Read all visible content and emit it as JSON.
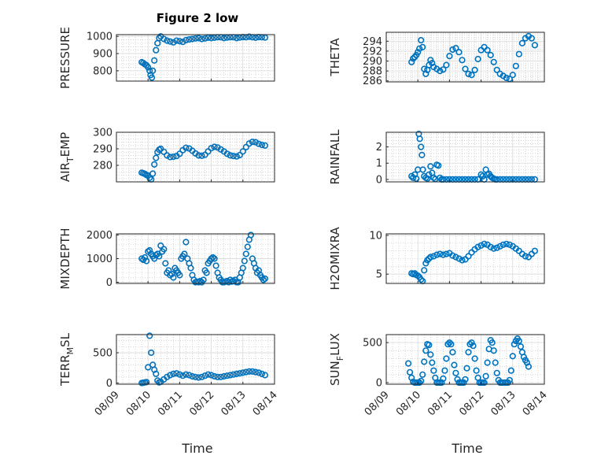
{
  "figure_title": "Figure 2 low",
  "x_axis_label": "Time",
  "x_tick_labels": [
    "08/09",
    "08/10",
    "08/11",
    "08/12",
    "08/13",
    "08/14"
  ],
  "chart_data": [
    {
      "type": "scatter",
      "ylabel": "PRESSURE",
      "ylim": [
        740,
        1010
      ],
      "yticks": [
        800,
        900,
        1000
      ],
      "xlim": [
        "08/09",
        "08/14"
      ],
      "grid": "on",
      "x": [
        9.8,
        9.85,
        9.9,
        9.95,
        10.0,
        10.05,
        10.08,
        10.12,
        10.15,
        10.2,
        10.25,
        10.3,
        10.35,
        10.4,
        10.5,
        10.6,
        10.7,
        10.8,
        10.9,
        11.0,
        11.1,
        11.2,
        11.3,
        11.4,
        11.5,
        11.6,
        11.7,
        11.8,
        11.9,
        12.0,
        12.1,
        12.2,
        12.3,
        12.4,
        12.5,
        12.6,
        12.7,
        12.8,
        12.9,
        13.0,
        13.1,
        13.2,
        13.3,
        13.4,
        13.5,
        13.6,
        13.7
      ],
      "y": [
        850,
        845,
        838,
        832,
        820,
        800,
        775,
        760,
        800,
        860,
        920,
        960,
        990,
        1000,
        985,
        975,
        970,
        965,
        975,
        972,
        968,
        978,
        982,
        985,
        988,
        990,
        985,
        988,
        992,
        990,
        992,
        995,
        995,
        990,
        993,
        995,
        995,
        990,
        993,
        996,
        995,
        998,
        995,
        992,
        996,
        995,
        993
      ]
    },
    {
      "type": "scatter",
      "ylabel": "THETA",
      "ylim": [
        285.8,
        295.8
      ],
      "yticks": [
        286,
        288,
        290,
        292,
        294
      ],
      "xlim": [
        "08/09",
        "08/14"
      ],
      "grid": "on",
      "x": [
        9.8,
        9.85,
        9.9,
        9.95,
        10.0,
        10.05,
        10.1,
        10.15,
        10.2,
        10.25,
        10.3,
        10.35,
        10.4,
        10.45,
        10.5,
        10.6,
        10.7,
        10.8,
        10.9,
        11.0,
        11.1,
        11.2,
        11.3,
        11.4,
        11.5,
        11.6,
        11.7,
        11.8,
        11.9,
        12.0,
        12.1,
        12.2,
        12.3,
        12.4,
        12.5,
        12.6,
        12.7,
        12.8,
        12.9,
        13.0,
        13.1,
        13.2,
        13.3,
        13.4,
        13.5,
        13.6,
        13.7
      ],
      "y": [
        289.8,
        290.5,
        290.8,
        291.2,
        291.8,
        292.5,
        294.2,
        292.8,
        288.4,
        287.4,
        288.2,
        289.2,
        290.2,
        289.6,
        288.8,
        288.4,
        288.0,
        288.3,
        289.2,
        291.0,
        292.3,
        292.6,
        291.8,
        290.2,
        288.4,
        287.4,
        287.2,
        288.2,
        290.4,
        292.2,
        292.8,
        292.2,
        291.2,
        289.8,
        288.2,
        287.4,
        287.0,
        286.6,
        286.4,
        287.2,
        289.0,
        291.4,
        293.6,
        294.6,
        295.0,
        294.6,
        293.2
      ]
    },
    {
      "type": "scatter",
      "ylabel": "AIR_TEMP",
      "ylim": [
        270,
        300
      ],
      "yticks": [
        280,
        290,
        300
      ],
      "xlim": [
        "08/09",
        "08/14"
      ],
      "grid": "on",
      "x": [
        9.8,
        9.85,
        9.9,
        9.95,
        10.0,
        10.05,
        10.1,
        10.15,
        10.2,
        10.25,
        10.3,
        10.35,
        10.4,
        10.5,
        10.6,
        10.7,
        10.8,
        10.9,
        11.0,
        11.1,
        11.2,
        11.3,
        11.4,
        11.5,
        11.6,
        11.7,
        11.8,
        11.9,
        12.0,
        12.1,
        12.2,
        12.3,
        12.4,
        12.5,
        12.6,
        12.7,
        12.8,
        12.9,
        13.0,
        13.1,
        13.2,
        13.3,
        13.4,
        13.5,
        13.6,
        13.7
      ],
      "y": [
        275.5,
        275.2,
        274.8,
        274.2,
        273.8,
        272.5,
        271.5,
        275.0,
        280.5,
        284.5,
        288.0,
        289.5,
        290.0,
        288.2,
        286.0,
        285.0,
        285.2,
        285.6,
        287.0,
        289.2,
        290.6,
        290.2,
        288.8,
        287.2,
        286.0,
        285.8,
        286.4,
        288.4,
        290.4,
        291.2,
        290.8,
        289.6,
        288.4,
        287.0,
        286.0,
        285.6,
        285.4,
        286.2,
        288.4,
        291.0,
        293.2,
        294.2,
        294.0,
        293.0,
        292.4,
        292.0
      ]
    },
    {
      "type": "scatter",
      "ylabel": "RAINFALL",
      "ylim": [
        -0.15,
        2.9
      ],
      "yticks": [
        0,
        1,
        2
      ],
      "xlim": [
        "08/09",
        "08/14"
      ],
      "grid": "on",
      "x": [
        9.8,
        9.85,
        9.9,
        9.95,
        10.0,
        10.03,
        10.06,
        10.1,
        10.13,
        10.16,
        10.2,
        10.25,
        10.3,
        10.35,
        10.4,
        10.45,
        10.5,
        10.55,
        10.6,
        10.65,
        10.7,
        10.75,
        10.8,
        10.9,
        11.0,
        11.1,
        11.2,
        11.3,
        11.4,
        11.5,
        11.6,
        11.7,
        11.8,
        11.9,
        12.0,
        12.05,
        12.1,
        12.15,
        12.2,
        12.25,
        12.3,
        12.35,
        12.4,
        12.45,
        12.5,
        12.6,
        12.7,
        12.8,
        12.9,
        13.0,
        13.1,
        13.2,
        13.3,
        13.4,
        13.5,
        13.6,
        13.7
      ],
      "y": [
        0.2,
        0.1,
        0.3,
        0.05,
        0.6,
        2.8,
        2.5,
        2.0,
        1.5,
        0.6,
        0.2,
        0.1,
        0.05,
        0.3,
        0.8,
        0.4,
        0.1,
        0.02,
        0.9,
        0.85,
        0.1,
        0.0,
        0.0,
        0.0,
        0.0,
        0.0,
        0.0,
        0.0,
        0.0,
        0.0,
        0.0,
        0.0,
        0.0,
        0.0,
        0.3,
        0.2,
        0.0,
        0.6,
        0.3,
        0.35,
        0.2,
        0.1,
        0.05,
        0.0,
        0.0,
        0.0,
        0.0,
        0.0,
        0.0,
        0.0,
        0.0,
        0.0,
        0.0,
        0.0,
        0.0,
        0.0,
        0.0
      ]
    },
    {
      "type": "scatter",
      "ylabel": "MIXDEPTH",
      "ylim": [
        -50,
        2050
      ],
      "yticks": [
        0,
        1000,
        2000
      ],
      "xlim": [
        "08/09",
        "08/14"
      ],
      "grid": "on",
      "x": [
        9.8,
        9.85,
        9.9,
        9.95,
        10.0,
        10.05,
        10.1,
        10.15,
        10.2,
        10.25,
        10.3,
        10.35,
        10.4,
        10.45,
        10.5,
        10.55,
        10.6,
        10.65,
        10.7,
        10.75,
        10.8,
        10.85,
        10.9,
        10.95,
        11.0,
        11.05,
        11.1,
        11.15,
        11.2,
        11.25,
        11.3,
        11.35,
        11.4,
        11.45,
        11.5,
        11.55,
        11.6,
        11.65,
        11.7,
        11.75,
        11.8,
        11.85,
        11.9,
        11.95,
        12.0,
        12.05,
        12.1,
        12.15,
        12.2,
        12.25,
        12.3,
        12.35,
        12.4,
        12.45,
        12.5,
        12.55,
        12.6,
        12.65,
        12.7,
        12.75,
        12.8,
        12.85,
        12.9,
        12.95,
        13.0,
        13.05,
        13.1,
        13.15,
        13.2,
        13.25,
        13.3,
        13.35,
        13.4,
        13.45,
        13.5,
        13.55,
        13.6,
        13.65,
        13.7
      ],
      "y": [
        1000,
        950,
        1050,
        900,
        1300,
        1350,
        1200,
        1100,
        1000,
        1150,
        1200,
        1100,
        1550,
        1300,
        1400,
        800,
        400,
        500,
        300,
        350,
        200,
        600,
        500,
        400,
        300,
        1000,
        1100,
        1200,
        1700,
        1000,
        800,
        600,
        300,
        100,
        0,
        20,
        0,
        50,
        0,
        100,
        500,
        400,
        800,
        900,
        1000,
        1050,
        1000,
        700,
        400,
        200,
        100,
        0,
        0,
        30,
        50,
        0,
        100,
        30,
        50,
        100,
        0,
        0,
        200,
        400,
        600,
        900,
        1200,
        1500,
        1800,
        2000,
        1000,
        800,
        600,
        400,
        500,
        300,
        200,
        100,
        150
      ]
    },
    {
      "type": "scatter",
      "ylabel": "H2OMIXRA",
      "ylim": [
        3.8,
        10.2
      ],
      "yticks": [
        5,
        10
      ],
      "xlim": [
        "08/09",
        "08/14"
      ],
      "grid": "on",
      "x": [
        9.8,
        9.85,
        9.9,
        9.95,
        10.0,
        10.05,
        10.1,
        10.15,
        10.2,
        10.25,
        10.3,
        10.35,
        10.4,
        10.5,
        10.6,
        10.7,
        10.8,
        10.9,
        11.0,
        11.1,
        11.2,
        11.3,
        11.4,
        11.5,
        11.6,
        11.7,
        11.8,
        11.9,
        12.0,
        12.1,
        12.2,
        12.3,
        12.4,
        12.5,
        12.6,
        12.7,
        12.8,
        12.9,
        13.0,
        13.1,
        13.2,
        13.3,
        13.4,
        13.5,
        13.6,
        13.7
      ],
      "y": [
        5.1,
        5.0,
        5.1,
        4.9,
        4.8,
        4.6,
        4.3,
        4.1,
        5.5,
        6.4,
        6.8,
        7.0,
        7.2,
        7.3,
        7.5,
        7.6,
        7.5,
        7.6,
        7.7,
        7.4,
        7.2,
        7.0,
        6.8,
        6.9,
        7.3,
        7.8,
        8.2,
        8.5,
        8.7,
        8.9,
        8.8,
        8.5,
        8.3,
        8.4,
        8.6,
        8.8,
        8.9,
        8.8,
        8.6,
        8.3,
        8.0,
        7.6,
        7.3,
        7.2,
        7.6,
        8.0
      ]
    },
    {
      "type": "scatter",
      "ylabel": "TERR_MSL",
      "ylim": [
        -20,
        800
      ],
      "yticks": [
        0,
        500
      ],
      "xlim": [
        "08/09",
        "08/14"
      ],
      "grid": "on",
      "x": [
        9.8,
        9.85,
        9.9,
        9.95,
        10.0,
        10.05,
        10.1,
        10.15,
        10.2,
        10.25,
        10.3,
        10.35,
        10.4,
        10.5,
        10.6,
        10.7,
        10.8,
        10.9,
        11.0,
        11.1,
        11.2,
        11.3,
        11.4,
        11.5,
        11.6,
        11.7,
        11.8,
        11.9,
        12.0,
        12.1,
        12.2,
        12.3,
        12.4,
        12.5,
        12.6,
        12.7,
        12.8,
        12.9,
        13.0,
        13.1,
        13.2,
        13.3,
        13.4,
        13.5,
        13.6,
        13.7
      ],
      "y": [
        0,
        5,
        10,
        15,
        260,
        780,
        500,
        300,
        220,
        150,
        40,
        10,
        20,
        60,
        100,
        130,
        150,
        160,
        140,
        120,
        140,
        130,
        110,
        100,
        90,
        100,
        120,
        140,
        130,
        110,
        100,
        100,
        110,
        120,
        130,
        140,
        150,
        160,
        170,
        180,
        190,
        190,
        180,
        170,
        150,
        130
      ]
    },
    {
      "type": "scatter",
      "ylabel": "SUN_FLUX",
      "ylim": [
        -20,
        600
      ],
      "yticks": [
        0,
        500
      ],
      "xlim": [
        "08/09",
        "08/14"
      ],
      "grid": "on",
      "x": [
        9.7,
        9.75,
        9.8,
        9.85,
        9.9,
        9.95,
        10.0,
        10.05,
        10.1,
        10.15,
        10.2,
        10.25,
        10.3,
        10.35,
        10.4,
        10.45,
        10.5,
        10.55,
        10.6,
        10.65,
        10.7,
        10.75,
        10.8,
        10.85,
        10.9,
        10.95,
        11.0,
        11.05,
        11.1,
        11.15,
        11.2,
        11.25,
        11.3,
        11.35,
        11.4,
        11.45,
        11.5,
        11.55,
        11.6,
        11.65,
        11.7,
        11.75,
        11.8,
        11.85,
        11.9,
        11.95,
        12.0,
        12.05,
        12.1,
        12.15,
        12.2,
        12.25,
        12.3,
        12.35,
        12.4,
        12.45,
        12.5,
        12.55,
        12.6,
        12.65,
        12.7,
        12.75,
        12.8,
        12.85,
        12.9,
        12.95,
        13.0,
        13.05,
        13.1,
        13.15,
        13.2,
        13.25,
        13.3,
        13.35,
        13.4,
        13.45,
        13.5
      ],
      "y": [
        240,
        130,
        60,
        10,
        0,
        0,
        0,
        0,
        20,
        100,
        260,
        400,
        480,
        470,
        350,
        250,
        150,
        60,
        0,
        0,
        0,
        0,
        50,
        150,
        300,
        480,
        500,
        480,
        380,
        220,
        120,
        40,
        0,
        0,
        0,
        0,
        40,
        180,
        380,
        480,
        500,
        460,
        300,
        150,
        60,
        0,
        0,
        0,
        0,
        80,
        250,
        420,
        530,
        500,
        400,
        250,
        120,
        30,
        0,
        0,
        0,
        0,
        0,
        0,
        30,
        150,
        330,
        480,
        520,
        550,
        520,
        450,
        380,
        320,
        280,
        250,
        200
      ]
    }
  ]
}
